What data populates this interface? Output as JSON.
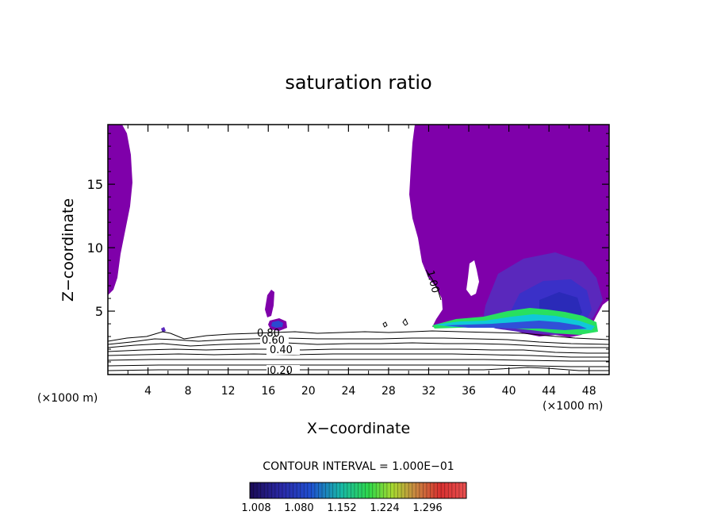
{
  "chart_data": {
    "type": "contour",
    "title": "saturation ratio",
    "xlabel": "X−coordinate",
    "ylabel": "Z−coordinate",
    "x_unit_label": "(×1000 m)",
    "z_unit_label": "(×1000 m)",
    "xlim": [
      0,
      50
    ],
    "ylim": [
      0,
      19.7
    ],
    "x_ticks": [
      4,
      8,
      12,
      16,
      20,
      24,
      28,
      32,
      36,
      40,
      44,
      48
    ],
    "y_ticks": [
      5,
      10,
      15
    ],
    "contour_interval_text": "CONTOUR INTERVAL = 1.000E−01",
    "contour_labels": [
      {
        "text": "0.20",
        "x": 17.5,
        "z": 0.45
      },
      {
        "text": "0.40",
        "x": 17.5,
        "z": 1.8
      },
      {
        "text": "0.60",
        "x": 16.5,
        "z": 2.6
      },
      {
        "text": "0.80",
        "x": 15.9,
        "z": 3.2
      },
      {
        "text": "1.00",
        "x": 32.2,
        "z": 7.5
      }
    ],
    "contour_levels": [
      0.2,
      0.4,
      0.6,
      0.8
    ],
    "colorbar": {
      "ticks": [
        "1.008",
        "1.080",
        "1.152",
        "1.224",
        "1.296"
      ],
      "colors": [
        "#1a0a55",
        "#2a2aa8",
        "#1f4fd0",
        "#18b8a8",
        "#2fd84a",
        "#a8d830",
        "#c88a40",
        "#d83030",
        "#e85050"
      ]
    },
    "colors": {
      "supersaturated": "#7f00aa",
      "region_mid": "#5a28bc",
      "region_deep": "#3a30c8",
      "band_green": "#28e060",
      "band_cyan": "#10c8d8"
    }
  }
}
